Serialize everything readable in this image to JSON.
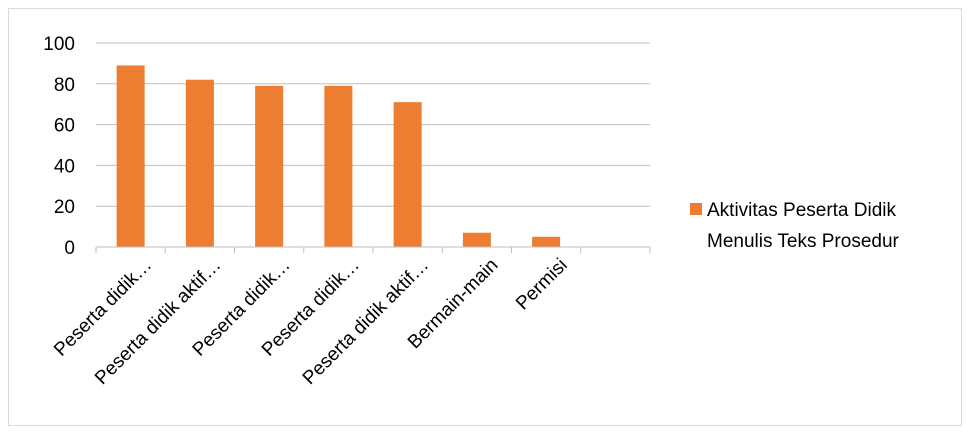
{
  "chart_data": {
    "type": "bar",
    "categories": [
      "Peserta didik…",
      "Peserta didik aktif…",
      "Peserta didik…",
      "Peserta didik…",
      "Peserta didik aktif…",
      "Bermain-main",
      "Permisi",
      ""
    ],
    "series": [
      {
        "name": "Aktivitas Peserta Didik Menulis Teks Prosedur",
        "values": [
          89,
          82,
          79,
          79,
          71,
          7,
          5,
          null
        ],
        "color": "#ed7d31"
      }
    ],
    "ylim": [
      0,
      100
    ],
    "yticks": [
      0,
      20,
      40,
      60,
      80,
      100
    ],
    "grid": true,
    "legend": "right",
    "legend_lines": [
      "Aktivitas Peserta Didik",
      "Menulis Teks Prosedur"
    ]
  }
}
